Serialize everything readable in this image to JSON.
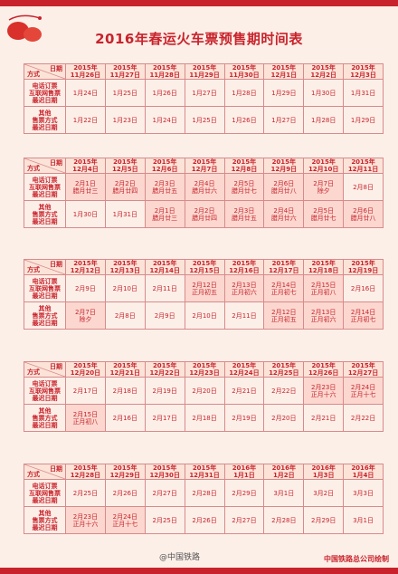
{
  "title": "2016年春运火车票预售期时间表",
  "header_labels": {
    "date": "日期",
    "method": "方式"
  },
  "row_labels": {
    "phone": "电话订票\n互联网售票\n最迟日期",
    "other": "其他\n售票方式\n最迟日期"
  },
  "footer": {
    "brand": "@中国铁路",
    "credit": "中国铁路总公司绘制"
  },
  "blocks": [
    {
      "dates": [
        "2015年\n11月26日",
        "2015年\n11月27日",
        "2015年\n11月28日",
        "2015年\n11月29日",
        "2015年\n11月30日",
        "2015年\n12月1日",
        "2015年\n12月2日",
        "2015年\n12月3日"
      ],
      "phone": [
        "1月24日",
        "1月25日",
        "1月26日",
        "1月27日",
        "1月28日",
        "1月29日",
        "1月30日",
        "1月31日"
      ],
      "other": [
        "1月22日",
        "1月23日",
        "1月24日",
        "1月25日",
        "1月26日",
        "1月27日",
        "1月28日",
        "1月29日"
      ]
    },
    {
      "dates": [
        "2015年\n12月4日",
        "2015年\n12月5日",
        "2015年\n12月6日",
        "2015年\n12月7日",
        "2015年\n12月8日",
        "2015年\n12月9日",
        "2015年\n12月10日",
        "2015年\n12月11日"
      ],
      "phone": [
        "2月1日\n腊月廿三",
        "2月2日\n腊月廿四",
        "2月3日\n腊月廿五",
        "2月4日\n腊月廿六",
        "2月5日\n腊月廿七",
        "2月6日\n腊月廿八",
        "2月7日\n除夕",
        "2月8日"
      ],
      "other": [
        "1月30日",
        "1月31日",
        "2月1日\n腊月廿三",
        "2月2日\n腊月廿四",
        "2月3日\n腊月廿五",
        "2月4日\n腊月廿六",
        "2月5日\n腊月廿七",
        "2月6日\n腊月廿八"
      ]
    },
    {
      "dates": [
        "2015年\n12月12日",
        "2015年\n12月13日",
        "2015年\n12月14日",
        "2015年\n12月15日",
        "2015年\n12月16日",
        "2015年\n12月17日",
        "2015年\n12月18日",
        "2015年\n12月19日"
      ],
      "phone": [
        "2月9日",
        "2月10日",
        "2月11日",
        "2月12日\n正月初五",
        "2月13日\n正月初六",
        "2月14日\n正月初七",
        "2月15日\n正月初八",
        "2月16日"
      ],
      "other": [
        "2月7日\n除夕",
        "2月8日",
        "2月9日",
        "2月10日",
        "2月11日",
        "2月12日\n正月初五",
        "2月13日\n正月初六",
        "2月14日\n正月初七"
      ]
    },
    {
      "dates": [
        "2015年\n12月20日",
        "2015年\n12月21日",
        "2015年\n12月22日",
        "2015年\n12月23日",
        "2015年\n12月24日",
        "2015年\n12月25日",
        "2015年\n12月26日",
        "2015年\n12月27日"
      ],
      "phone": [
        "2月17日",
        "2月18日",
        "2月19日",
        "2月20日",
        "2月21日",
        "2月22日",
        "2月23日\n正月十六",
        "2月24日\n正月十七"
      ],
      "other": [
        "2月15日\n正月初八",
        "2月16日",
        "2月17日",
        "2月18日",
        "2月19日",
        "2月20日",
        "2月21日",
        "2月22日"
      ]
    },
    {
      "dates": [
        "2015年\n12月28日",
        "2015年\n12月29日",
        "2015年\n12月30日",
        "2015年\n12月31日",
        "2016年\n1月1日",
        "2016年\n1月2日",
        "2016年\n1月3日",
        "2016年\n1月4日"
      ],
      "phone": [
        "2月25日",
        "2月26日",
        "2月27日",
        "2月28日",
        "2月29日",
        "3月1日",
        "3月2日",
        "3月3日"
      ],
      "other": [
        "2月23日\n正月十六",
        "2月24日\n正月十七",
        "2月25日",
        "2月26日",
        "2月27日",
        "2月28日",
        "2月29日",
        "3月1日"
      ]
    }
  ]
}
